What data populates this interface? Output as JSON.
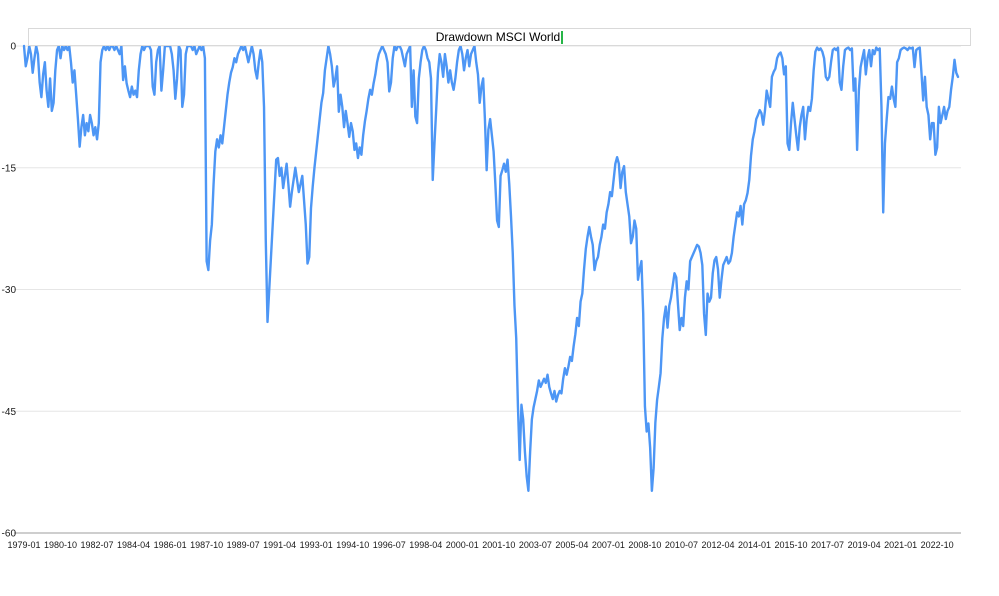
{
  "title": {
    "text": "Drawdown MSCI World",
    "editing_caret": true
  },
  "colors": {
    "series_line": "#4d96f5",
    "gridline": "#e6e6e6",
    "axis_line": "#9e9e9e",
    "tick_label": "#1a1a1a",
    "title_text": "#000000",
    "caret_green": "#26b547",
    "title_border": "#d9d9d9",
    "background": "#ffffff"
  },
  "chart_data": {
    "type": "line",
    "title": "Drawdown MSCI World",
    "xlabel": "",
    "ylabel": "",
    "x_start": "1979-01",
    "x_end": "2023-10",
    "x_frequency": "monthly",
    "ylim": [
      -60,
      0
    ],
    "y_tick_labels": [
      "0",
      "-15",
      "-30",
      "-45",
      "-60"
    ],
    "y_tick_values": [
      0,
      -15,
      -30,
      -45,
      -60
    ],
    "x_tick_interval_months": 21,
    "x_tick_labels": [
      "1979-01",
      "1980-10",
      "1982-07",
      "1984-04",
      "1986-01",
      "1987-10",
      "1989-07",
      "1991-04",
      "1993-01",
      "1994-10",
      "1996-07",
      "1998-04",
      "2000-01",
      "2001-10",
      "2003-07",
      "2005-04",
      "2007-01",
      "2008-10",
      "2010-07",
      "2012-04",
      "2014-01",
      "2015-10",
      "2017-07",
      "2019-04",
      "2021-01",
      "2022-10"
    ],
    "grid": "horizontal",
    "legend": "none",
    "series": [
      {
        "name": "Drawdown MSCI World",
        "color": "#4d96f5",
        "values": [
          0,
          -2.5,
          -1.5,
          0,
          -1,
          -3.3,
          -1.5,
          0,
          -1,
          -4.5,
          -6.3,
          -3.5,
          -2,
          -5.5,
          -7.5,
          -4,
          -8,
          -7,
          -3,
          -0.5,
          0,
          -1.5,
          0,
          -0.5,
          0,
          -0.5,
          0,
          -2,
          -4.5,
          -3,
          -6,
          -9,
          -12.4,
          -10,
          -8.5,
          -11,
          -9.5,
          -10.5,
          -8.5,
          -9.5,
          -11,
          -10,
          -11.5,
          -9.5,
          -2,
          -0.5,
          0,
          -0.5,
          0,
          -0.5,
          0,
          0,
          -0.5,
          0,
          -0.5,
          -1,
          0,
          -4.2,
          -2.5,
          -4.6,
          -5.5,
          -6.3,
          -5,
          -6,
          -5.5,
          -6.3,
          -3,
          -1,
          0,
          -0.5,
          0,
          0,
          0,
          -0.5,
          -5,
          -6,
          -2,
          -0.5,
          0,
          -5.5,
          -3,
          0,
          0,
          0,
          0,
          -1,
          -3,
          -6.5,
          -4,
          0,
          -0.5,
          -7.5,
          -6,
          -1,
          0,
          0,
          0,
          -0.5,
          0,
          -1,
          -0.5,
          0,
          -0.5,
          0,
          -1.5,
          -26.5,
          -27.6,
          -24,
          -22,
          -17,
          -13,
          -11.5,
          -12.5,
          -11,
          -12,
          -10,
          -8,
          -6,
          -4.5,
          -3.3,
          -2.6,
          -1.5,
          -2,
          -1,
          -0.5,
          0,
          -0.5,
          0,
          -1,
          -2,
          -1,
          0,
          -1,
          -3,
          -4,
          -2,
          -0.5,
          -2,
          -7.5,
          -23.9,
          -34,
          -30,
          -26,
          -22,
          -18,
          -14,
          -13.8,
          -16,
          -15,
          -17.5,
          -16,
          -14.5,
          -17,
          -19.8,
          -18,
          -16.5,
          -15,
          -16.5,
          -18,
          -17,
          -16,
          -19,
          -22,
          -26.8,
          -26,
          -20,
          -17.3,
          -15,
          -13,
          -11,
          -9,
          -7,
          -5.8,
          -3,
          -1.5,
          0,
          -1,
          -2.5,
          -5,
          -4,
          -2.5,
          -8.1,
          -6,
          -7.5,
          -10,
          -8,
          -9.5,
          -11.2,
          -9.5,
          -10.5,
          -12.8,
          -12,
          -13.8,
          -12.5,
          -13.4,
          -11,
          -9.3,
          -8,
          -6.5,
          -5.4,
          -6,
          -4.6,
          -3.5,
          -2,
          -1,
          -0.5,
          0,
          -0.5,
          -1,
          -2,
          -5.6,
          -4.5,
          -1.5,
          0,
          -0.5,
          0,
          0,
          -0.5,
          -1.5,
          -2.5,
          -1,
          -0.5,
          0,
          -7.5,
          -3,
          -8.7,
          -9.5,
          -4,
          -2,
          -0.5,
          0,
          -0.5,
          -1.5,
          -2,
          -4,
          -16.5,
          -12,
          -7.8,
          -3.3,
          -1,
          -2,
          -3.8,
          -1,
          -2.5,
          -4.5,
          -3,
          -4.5,
          -5.4,
          -4,
          -2,
          -0.5,
          0,
          -1,
          -3,
          -1.5,
          -0.5,
          -2.5,
          -1,
          -0.5,
          0,
          -2,
          -3.5,
          -7,
          -5,
          -4,
          -9,
          -15.3,
          -10.3,
          -9,
          -11,
          -13,
          -17,
          -21.5,
          -22.3,
          -16,
          -15.3,
          -14.5,
          -15.5,
          -14,
          -17,
          -21,
          -25.5,
          -32,
          -36,
          -44.5,
          -51,
          -44.2,
          -46,
          -50,
          -53,
          -54.8,
          -50,
          -46,
          -44.5,
          -43.5,
          -42.5,
          -41.2,
          -42,
          -41.5,
          -41,
          -41.5,
          -40.5,
          -42,
          -42.8,
          -43.5,
          -42.5,
          -43.8,
          -43,
          -42.5,
          -42.8,
          -41,
          -39.7,
          -40.5,
          -39.5,
          -38.3,
          -38.8,
          -37,
          -35.5,
          -33.5,
          -34.5,
          -31.5,
          -30.5,
          -27.5,
          -25,
          -23.5,
          -22.3,
          -23.5,
          -24.5,
          -27.6,
          -26.5,
          -26,
          -24.5,
          -23.5,
          -22,
          -22.5,
          -20.5,
          -19.5,
          -18,
          -18.5,
          -16.5,
          -14.5,
          -13.7,
          -14.5,
          -17.5,
          -15.5,
          -14.8,
          -18,
          -19.5,
          -21,
          -24.3,
          -23.5,
          -21.5,
          -22.5,
          -28.8,
          -27.5,
          -26.5,
          -32.9,
          -44.4,
          -47.5,
          -46.5,
          -49.5,
          -54.8,
          -52,
          -46.4,
          -43.6,
          -42,
          -40.3,
          -36,
          -33.5,
          -32.1,
          -34.7,
          -32,
          -31,
          -29.5,
          -28,
          -28.5,
          -31.8,
          -35,
          -33.5,
          -34.5,
          -31,
          -29,
          -30,
          -26.5,
          -26,
          -25.5,
          -25,
          -24.5,
          -24.7,
          -25.5,
          -27,
          -33,
          -35.6,
          -30.5,
          -31.5,
          -31,
          -28,
          -26.4,
          -26,
          -27.5,
          -31,
          -28.8,
          -27,
          -26.5,
          -26,
          -26.8,
          -26.5,
          -25.5,
          -23.5,
          -22,
          -20.5,
          -21,
          -19.7,
          -22,
          -19.5,
          -19,
          -18.1,
          -16.5,
          -13.5,
          -11.5,
          -10.5,
          -9,
          -8.5,
          -7.9,
          -8.3,
          -9.7,
          -8,
          -5.5,
          -6.5,
          -7.5,
          -3.8,
          -3.2,
          -2.8,
          -1.5,
          -1,
          -0.8,
          -1.5,
          -3.5,
          -2.5,
          -12,
          -12.8,
          -9.5,
          -7,
          -9,
          -11,
          -12.8,
          -10,
          -8.5,
          -7.5,
          -11.5,
          -9,
          -7.5,
          -8,
          -6.5,
          -3,
          -0.7,
          -0.2,
          -0.5,
          -0.3,
          -0.7,
          -1.5,
          -3.8,
          -4.2,
          -3.8,
          -2,
          -0.5,
          -0.3,
          -0.5,
          -0.2,
          -4.5,
          -5.4,
          -2.5,
          -0.5,
          -0.3,
          -0.2,
          -0.5,
          -0.3,
          -5.5,
          -4,
          -12.8,
          -5.5,
          -2.6,
          -1.5,
          -0.5,
          -3.5,
          -1.5,
          -0.5,
          -2.5,
          -0.5,
          -1,
          -0.2,
          -0.5,
          -0.3,
          -7.5,
          -20.5,
          -12,
          -9,
          -6.3,
          -6.5,
          -5,
          -6.5,
          -7.5,
          -2,
          -1.5,
          -0.5,
          -0.3,
          -0.2,
          -0.3,
          -0.5,
          -0.2,
          -0.3,
          -0.2,
          -2.6,
          -0.5,
          -0.3,
          -0.2,
          -3.3,
          -6.7,
          -3.8,
          -7.5,
          -8.5,
          -11.5,
          -9.5,
          -9.5,
          -13.4,
          -12.5,
          -7.5,
          -9.5,
          -8.5,
          -7.5,
          -9,
          -8,
          -7.5,
          -5.4,
          -3.8,
          -1.7,
          -3.3,
          -3.8
        ]
      }
    ]
  }
}
